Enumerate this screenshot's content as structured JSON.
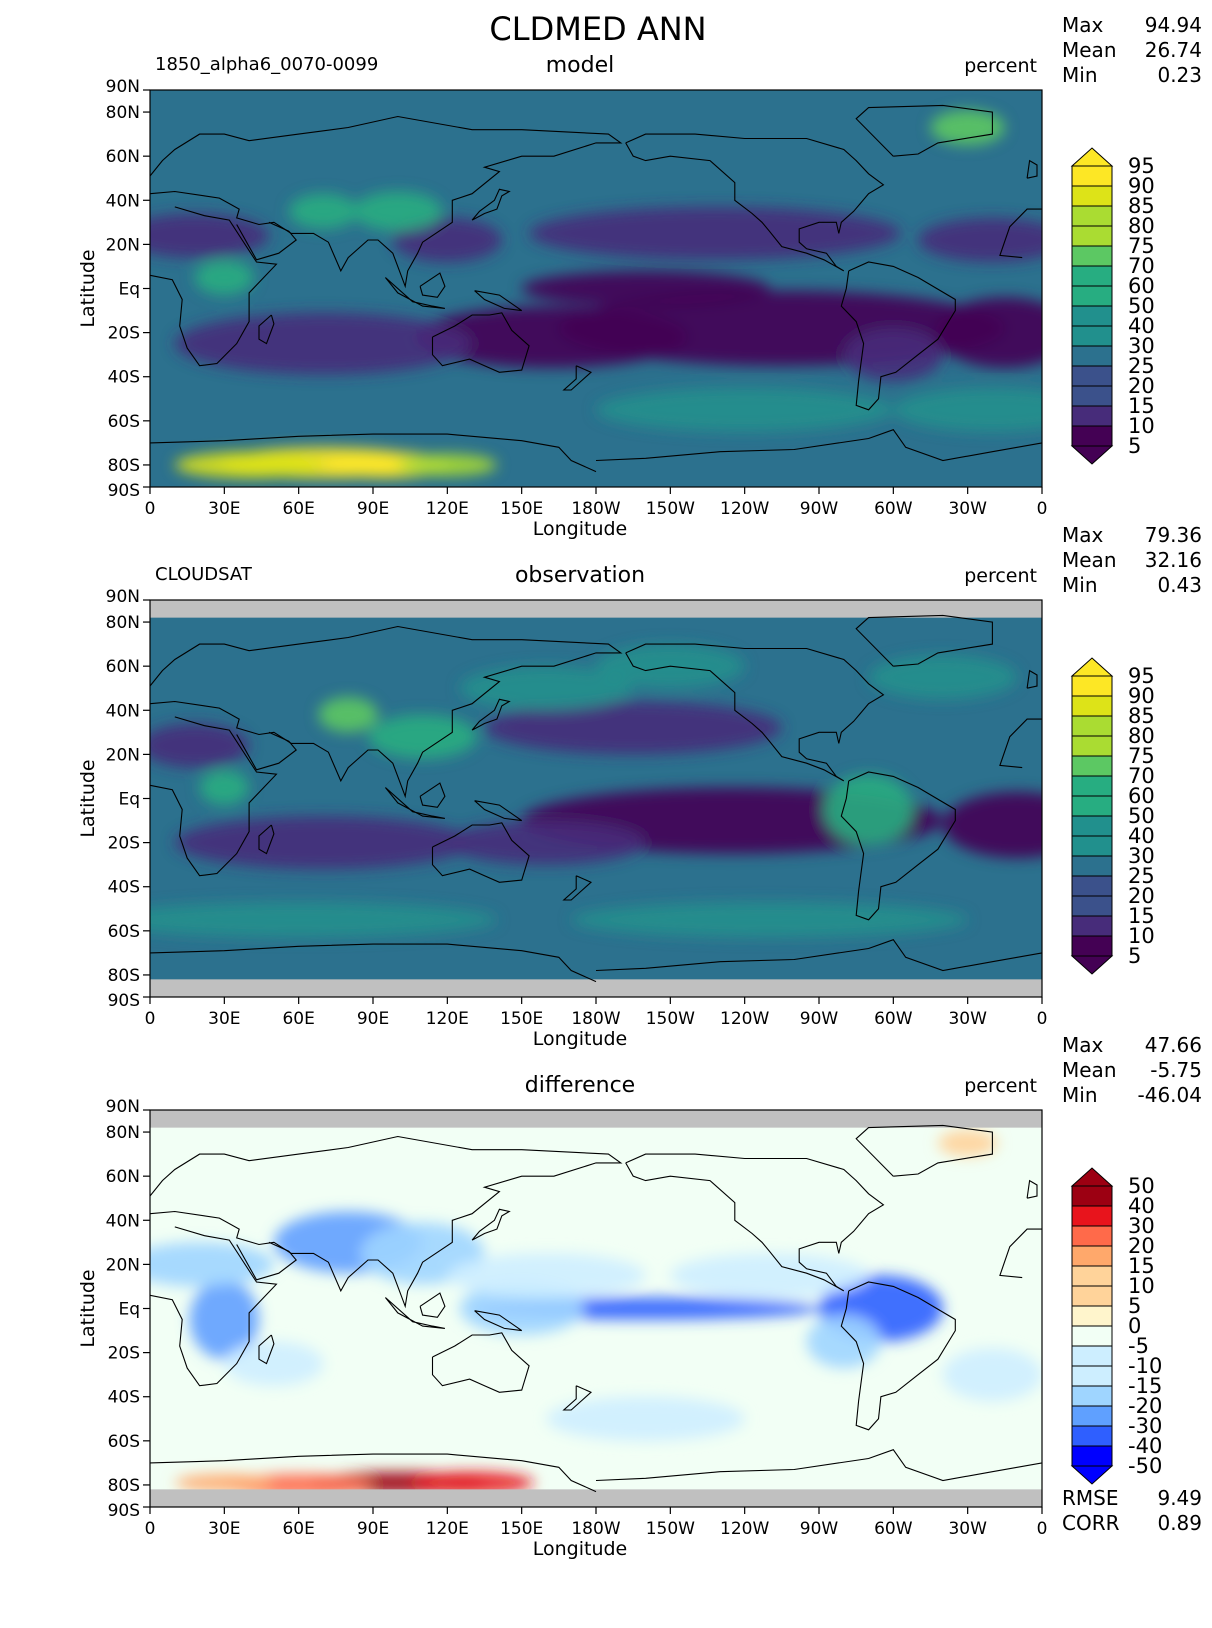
{
  "title": "CLDMED ANN",
  "units": "percent",
  "axis_labels": {
    "x": "Longitude",
    "y": "Latitude"
  },
  "lon_ticks": [
    "0",
    "30E",
    "60E",
    "90E",
    "120E",
    "150E",
    "180W",
    "150W",
    "120W",
    "90W",
    "60W",
    "30W",
    "0"
  ],
  "lat_ticks": [
    "90N",
    "80N",
    "60N",
    "40N",
    "20N",
    "Eq",
    "20S",
    "40S",
    "60S",
    "80S",
    "90S"
  ],
  "colors": {
    "missing": "#c0c0c0",
    "coast": "#000000",
    "seq_scale": [
      "#440154",
      "#472c7a",
      "#3b518b",
      "#2c718e",
      "#21908d",
      "#27ad81",
      "#5cc863",
      "#aadc32",
      "#dde318",
      "#fde725"
    ],
    "div_scale": [
      "#0000ff",
      "#2f5fff",
      "#5fa0ff",
      "#9fd5ff",
      "#cdeeff",
      "#f2fff5",
      "#fff5cc",
      "#ffd39a",
      "#ffa86b",
      "#ff6a4a",
      "#e8141c",
      "#9c0012"
    ]
  },
  "chart_data": [
    {
      "type": "heatmap",
      "panel": "model",
      "left_label": "1850_alpha6_0070-0099",
      "center_label": "model",
      "right_label": "percent",
      "stats": [
        {
          "label": "Max",
          "value": "94.94"
        },
        {
          "label": "Mean",
          "value": "26.74"
        },
        {
          "label": "Min",
          "value": "0.23"
        }
      ],
      "colorbar_levels": [
        "95",
        "90",
        "85",
        "80",
        "75",
        "70",
        "60",
        "50",
        "40",
        "30",
        "25",
        "20",
        "15",
        "10",
        "5"
      ],
      "xlim": [
        0,
        360
      ],
      "ylim": [
        -90,
        90
      ]
    },
    {
      "type": "heatmap",
      "panel": "observation",
      "left_label": "CLOUDSAT",
      "center_label": "observation",
      "right_label": "percent",
      "stats": [
        {
          "label": "Max",
          "value": "79.36"
        },
        {
          "label": "Mean",
          "value": "32.16"
        },
        {
          "label": "Min",
          "value": "0.43"
        }
      ],
      "colorbar_levels": [
        "95",
        "90",
        "85",
        "80",
        "75",
        "70",
        "60",
        "50",
        "40",
        "30",
        "25",
        "20",
        "15",
        "10",
        "5"
      ],
      "xlim": [
        0,
        360
      ],
      "ylim": [
        -90,
        90
      ]
    },
    {
      "type": "heatmap",
      "panel": "difference",
      "left_label": "",
      "center_label": "difference",
      "right_label": "percent",
      "stats": [
        {
          "label": "Max",
          "value": "47.66"
        },
        {
          "label": "Mean",
          "value": "-5.75"
        },
        {
          "label": "Min",
          "value": "-46.04"
        }
      ],
      "extra_stats": [
        {
          "label": "RMSE",
          "value": "9.49"
        },
        {
          "label": "CORR",
          "value": "0.89"
        }
      ],
      "colorbar_levels": [
        "50",
        "40",
        "30",
        "20",
        "15",
        "10",
        "5",
        "0",
        "-5",
        "-10",
        "-15",
        "-20",
        "-30",
        "-40",
        "-50"
      ],
      "xlim": [
        0,
        360
      ],
      "ylim": [
        -90,
        90
      ]
    }
  ]
}
